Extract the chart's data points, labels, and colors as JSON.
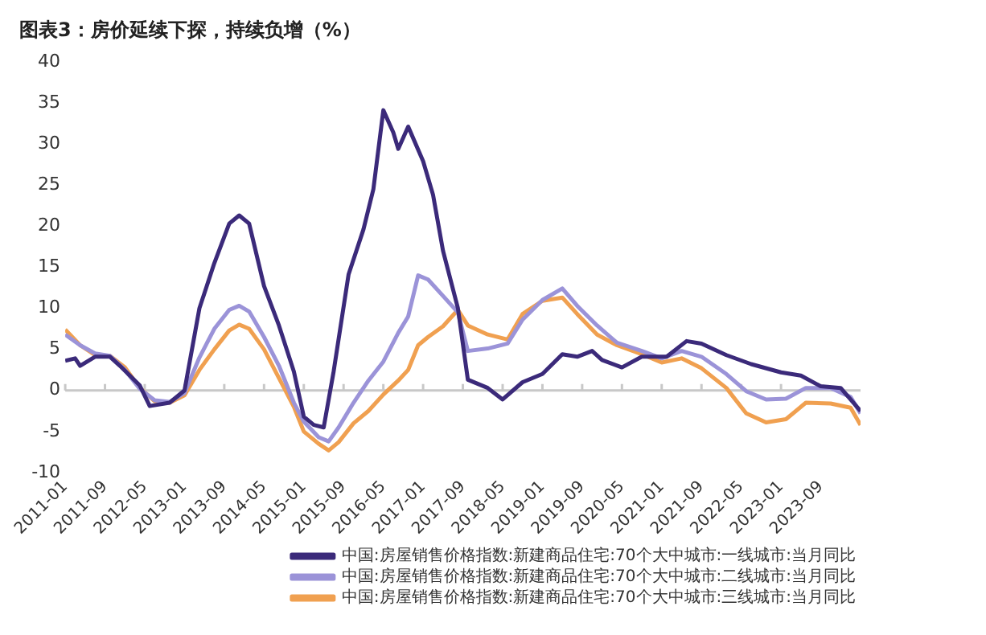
{
  "chart_data": {
    "type": "line",
    "title": "图表3：房价延续下探，持续负增（%）",
    "ylim": [
      -10,
      40
    ],
    "yticks": [
      -10,
      -5,
      0,
      5,
      10,
      15,
      20,
      25,
      30,
      35,
      40
    ],
    "xlim": [
      "2011-01",
      "2024-05"
    ],
    "xticks": [
      "2011-01",
      "2011-09",
      "2012-05",
      "2013-01",
      "2013-09",
      "2014-05",
      "2015-01",
      "2015-09",
      "2016-05",
      "2017-01",
      "2017-09",
      "2018-05",
      "2019-01",
      "2019-09",
      "2020-05",
      "2021-01",
      "2021-09",
      "2022-05",
      "2023-01",
      "2023-09"
    ],
    "grid": false,
    "legend": "bottom",
    "marker": "none",
    "line_style": "solid",
    "ref_lines": [
      {
        "axis": "y",
        "value": 0,
        "color": "#c8c8c8"
      }
    ],
    "series": [
      {
        "name": "中国:房屋销售价格指数:新建商品住宅:70个大中城市:一线城市:当月同比",
        "color": "#3b2a7a",
        "x": [
          "2011-01",
          "2011-03",
          "2011-04",
          "2011-07",
          "2011-10",
          "2011-12",
          "2012-04",
          "2012-06",
          "2012-10",
          "2013-01",
          "2013-04",
          "2013-07",
          "2013-10",
          "2013-12",
          "2014-02",
          "2014-05",
          "2014-08",
          "2014-11",
          "2015-01",
          "2015-03",
          "2015-05",
          "2015-07",
          "2015-10",
          "2016-01",
          "2016-03",
          "2016-05",
          "2016-07",
          "2016-08",
          "2016-10",
          "2017-01",
          "2017-03",
          "2017-05",
          "2017-08",
          "2017-10",
          "2018-02",
          "2018-05",
          "2018-09",
          "2019-01",
          "2019-05",
          "2019-08",
          "2019-11",
          "2020-01",
          "2020-05",
          "2020-09",
          "2021-02",
          "2021-06",
          "2021-09",
          "2022-02",
          "2022-07",
          "2023-01",
          "2023-05",
          "2023-09",
          "2024-01",
          "2024-05"
        ],
        "values": [
          3.6,
          3.9,
          3.0,
          4.1,
          4.1,
          3.0,
          0.6,
          -1.9,
          -1.5,
          0,
          10,
          15.5,
          20.3,
          21.3,
          20.3,
          12.7,
          7.9,
          2.3,
          -3.2,
          -4.2,
          -4.5,
          2.3,
          14.1,
          19.6,
          24.5,
          34.1,
          31.4,
          29.4,
          32.1,
          27.9,
          23.8,
          17,
          10,
          1.3,
          0.3,
          -1.1,
          1,
          2,
          4.4,
          4.1,
          4.8,
          3.7,
          2.8,
          4.1,
          4.1,
          6,
          5.7,
          4.3,
          3.2,
          2.2,
          1.8,
          0.5,
          0.3,
          -2.5
        ]
      },
      {
        "name": "中国:房屋销售价格指数:新建商品住宅:70个大中城市:二线城市:当月同比",
        "color": "#9b93d8",
        "x": [
          "2011-01",
          "2011-04",
          "2011-07",
          "2011-10",
          "2012-01",
          "2012-04",
          "2012-07",
          "2012-10",
          "2013-01",
          "2013-04",
          "2013-07",
          "2013-10",
          "2013-12",
          "2014-02",
          "2014-05",
          "2014-08",
          "2014-11",
          "2015-01",
          "2015-04",
          "2015-06",
          "2015-08",
          "2015-11",
          "2016-02",
          "2016-05",
          "2016-08",
          "2016-10",
          "2016-12",
          "2017-02",
          "2017-05",
          "2017-08",
          "2017-10",
          "2018-02",
          "2018-06",
          "2018-09",
          "2019-01",
          "2019-05",
          "2019-08",
          "2019-12",
          "2020-04",
          "2020-09",
          "2021-01",
          "2021-05",
          "2021-09",
          "2022-02",
          "2022-06",
          "2022-10",
          "2023-02",
          "2023-06",
          "2023-11",
          "2024-03",
          "2024-05"
        ],
        "values": [
          6.8,
          5.5,
          4.5,
          4.2,
          2.5,
          0.2,
          -1.2,
          -1.4,
          -0.3,
          4,
          7.5,
          9.8,
          10.3,
          9.6,
          6.5,
          3,
          -1.5,
          -3.8,
          -5.7,
          -6.2,
          -4.5,
          -1.5,
          1.2,
          3.5,
          7,
          9,
          14,
          13.5,
          11.5,
          9.5,
          4.8,
          5.1,
          5.7,
          8.6,
          11,
          12.4,
          10.3,
          7.9,
          5.8,
          4.8,
          3.9,
          4.8,
          4.1,
          2,
          -0.1,
          -1.1,
          -1,
          0.3,
          0.3,
          -0.8,
          -2.8
        ]
      },
      {
        "name": "中国:房屋销售价格指数:新建商品住宅:70个大中城市:三线城市:当月同比",
        "color": "#f0a050",
        "x": [
          "2011-01",
          "2011-04",
          "2011-07",
          "2011-10",
          "2012-01",
          "2012-04",
          "2012-07",
          "2012-10",
          "2013-01",
          "2013-04",
          "2013-07",
          "2013-10",
          "2013-12",
          "2014-02",
          "2014-05",
          "2014-08",
          "2014-11",
          "2015-01",
          "2015-04",
          "2015-06",
          "2015-08",
          "2015-11",
          "2016-02",
          "2016-05",
          "2016-08",
          "2016-10",
          "2016-12",
          "2017-02",
          "2017-05",
          "2017-08",
          "2017-10",
          "2018-02",
          "2018-06",
          "2018-09",
          "2019-01",
          "2019-05",
          "2019-08",
          "2019-12",
          "2020-04",
          "2020-09",
          "2021-01",
          "2021-05",
          "2021-09",
          "2022-02",
          "2022-06",
          "2022-10",
          "2023-02",
          "2023-06",
          "2023-11",
          "2024-03",
          "2024-05"
        ],
        "values": [
          7.4,
          5.5,
          4.3,
          4.2,
          2.8,
          0.3,
          -1.3,
          -1.5,
          -0.6,
          2.5,
          5,
          7.3,
          8,
          7.5,
          5,
          1.5,
          -2,
          -5,
          -6.5,
          -7.3,
          -6.3,
          -4,
          -2.5,
          -0.5,
          1.2,
          2.5,
          5.5,
          6.5,
          7.8,
          9.8,
          7.9,
          6.8,
          6.2,
          9.3,
          10.9,
          11.3,
          9.3,
          6.8,
          5.5,
          4.4,
          3.4,
          3.9,
          2.7,
          0.3,
          -2.8,
          -3.9,
          -3.5,
          -1.5,
          -1.6,
          -2.1,
          -4.2
        ]
      }
    ]
  }
}
